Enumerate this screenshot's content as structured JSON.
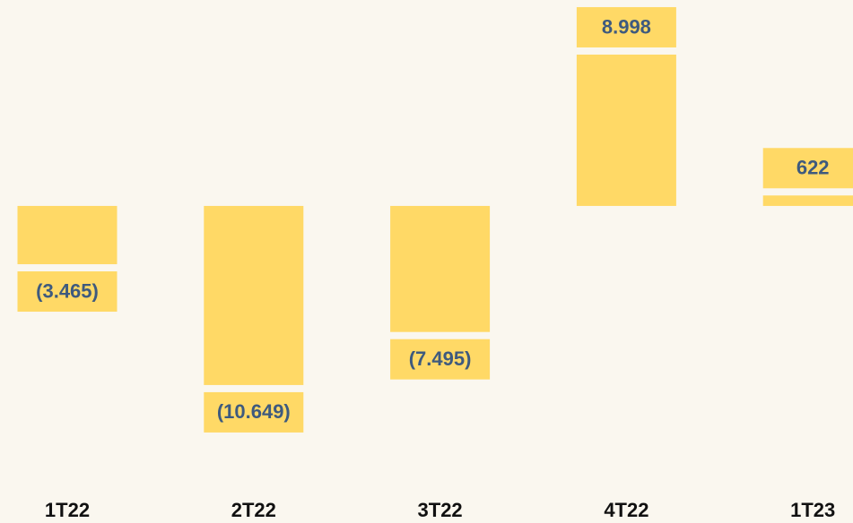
{
  "chart_data": {
    "type": "bar",
    "categories": [
      "1T22",
      "2T22",
      "3T22",
      "4T22",
      "1T23"
    ],
    "values": [
      -3465,
      -10649,
      -7495,
      8998,
      622
    ],
    "value_labels": [
      "(3.465)",
      "(10.649)",
      "(7.495)",
      "8.998",
      "622"
    ],
    "color": "#ffd966",
    "ylim": [
      -12000,
      12000
    ]
  }
}
